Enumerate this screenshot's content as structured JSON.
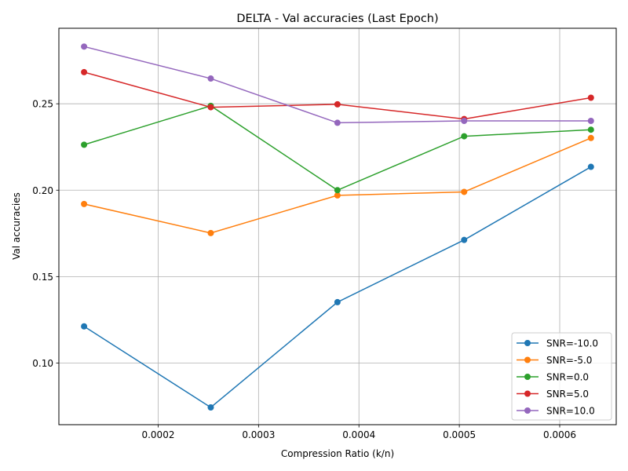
{
  "chart_data": {
    "type": "line",
    "title": "DELTA - Val accuracies (Last Epoch)",
    "xlabel": "Compression Ratio (k/n)",
    "ylabel": "Val accuracies",
    "x": [
      0.0001262,
      0.0002524,
      0.0003786,
      0.0005048,
      0.0006311
    ],
    "xlim": [
      0.0001011,
      0.0006563
    ],
    "ylim": [
      0.0643,
      0.2937
    ],
    "xticks": [
      {
        "value": 0.0002,
        "label": "0.0002"
      },
      {
        "value": 0.0003,
        "label": "0.0003"
      },
      {
        "value": 0.0004,
        "label": "0.0004"
      },
      {
        "value": 0.0005,
        "label": "0.0005"
      },
      {
        "value": 0.0006,
        "label": "0.0006"
      }
    ],
    "yticks": [
      {
        "value": 0.1,
        "label": "0.10"
      },
      {
        "value": 0.15,
        "label": "0.15"
      },
      {
        "value": 0.2,
        "label": "0.20"
      },
      {
        "value": 0.25,
        "label": "0.25"
      }
    ],
    "grid": true,
    "legend_position": "lower-right",
    "series": [
      {
        "name": "SNR=-10.0",
        "color": "#1f77b4",
        "values": [
          0.1212,
          0.0743,
          0.1352,
          0.1712,
          0.2135
        ]
      },
      {
        "name": "SNR=-5.0",
        "color": "#ff7f0e",
        "values": [
          0.192,
          0.1752,
          0.197,
          0.199,
          0.2302
        ]
      },
      {
        "name": "SNR=0.0",
        "color": "#2ca02c",
        "values": [
          0.2263,
          0.2488,
          0.2,
          0.2312,
          0.235
        ]
      },
      {
        "name": "SNR=5.0",
        "color": "#d62728",
        "values": [
          0.2683,
          0.248,
          0.2497,
          0.2412,
          0.2535
        ]
      },
      {
        "name": "SNR=10.0",
        "color": "#9467bd",
        "values": [
          0.2831,
          0.2646,
          0.239,
          0.2401,
          0.2401
        ]
      }
    ]
  }
}
